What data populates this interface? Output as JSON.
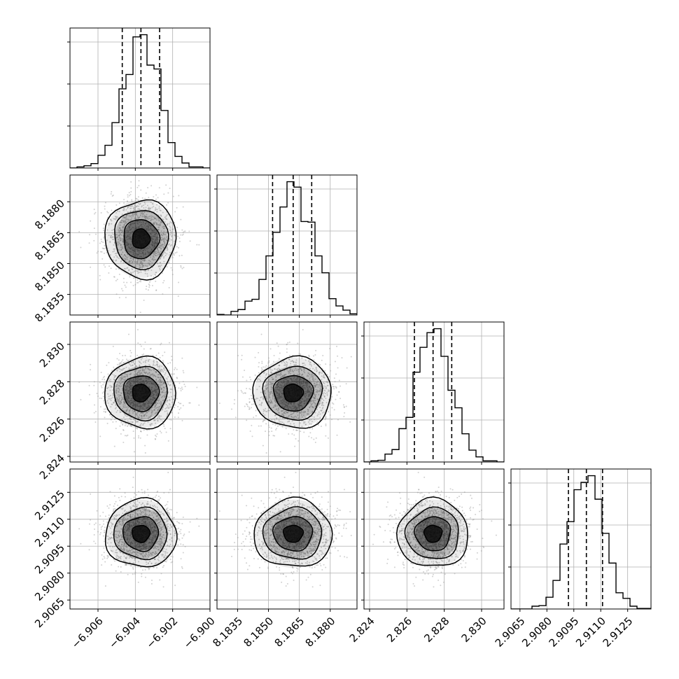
{
  "chart_data": {
    "type": "scatter",
    "plot_kind": "corner",
    "grid": true,
    "colors": {
      "frame": "#000000",
      "grid": "#b0b0b0",
      "points": "#9a9a9a",
      "density": "#000000",
      "quantile_line": "#000000"
    },
    "parameters": [
      {
        "mean": -6.9037,
        "std": 0.00095,
        "range": [
          -6.9075,
          -6.9
        ],
        "quantiles": [
          -6.9047,
          -6.9037,
          -6.9027
        ],
        "ticks": [
          -6.906,
          -6.904,
          -6.902,
          -6.9
        ],
        "tick_labels": [
          "−6.906",
          "−6.904",
          "−6.902",
          "−6.900"
        ]
      },
      {
        "mean": 8.1862,
        "std": 0.00095,
        "range": [
          8.1825,
          8.1893
        ],
        "quantiles": [
          8.1852,
          8.1862,
          8.1871
        ],
        "ticks": [
          8.1835,
          8.185,
          8.1865,
          8.188
        ],
        "tick_labels": [
          "8.1835",
          "8.1850",
          "8.1865",
          "8.1880"
        ]
      },
      {
        "mean": 2.8274,
        "std": 0.00095,
        "range": [
          2.8237,
          2.8312
        ],
        "quantiles": [
          2.8264,
          2.8274,
          2.8284
        ],
        "ticks": [
          2.824,
          2.826,
          2.828,
          2.83
        ],
        "tick_labels": [
          "2.824",
          "2.826",
          "2.828",
          "2.830"
        ]
      },
      {
        "mean": 2.9102,
        "std": 0.00095,
        "range": [
          2.906,
          2.9138
        ],
        "quantiles": [
          2.9092,
          2.9102,
          2.9111
        ],
        "ticks": [
          2.9065,
          2.908,
          2.9095,
          2.911,
          2.9125
        ],
        "tick_labels": [
          "2.9065",
          "2.9080",
          "2.9095",
          "2.9110",
          "2.9125"
        ]
      }
    ],
    "histogram_bins": 20,
    "contour_levels_sigma": [
      0.5,
      1.0,
      1.5,
      2.0
    ],
    "scatter_samples": 1500
  }
}
